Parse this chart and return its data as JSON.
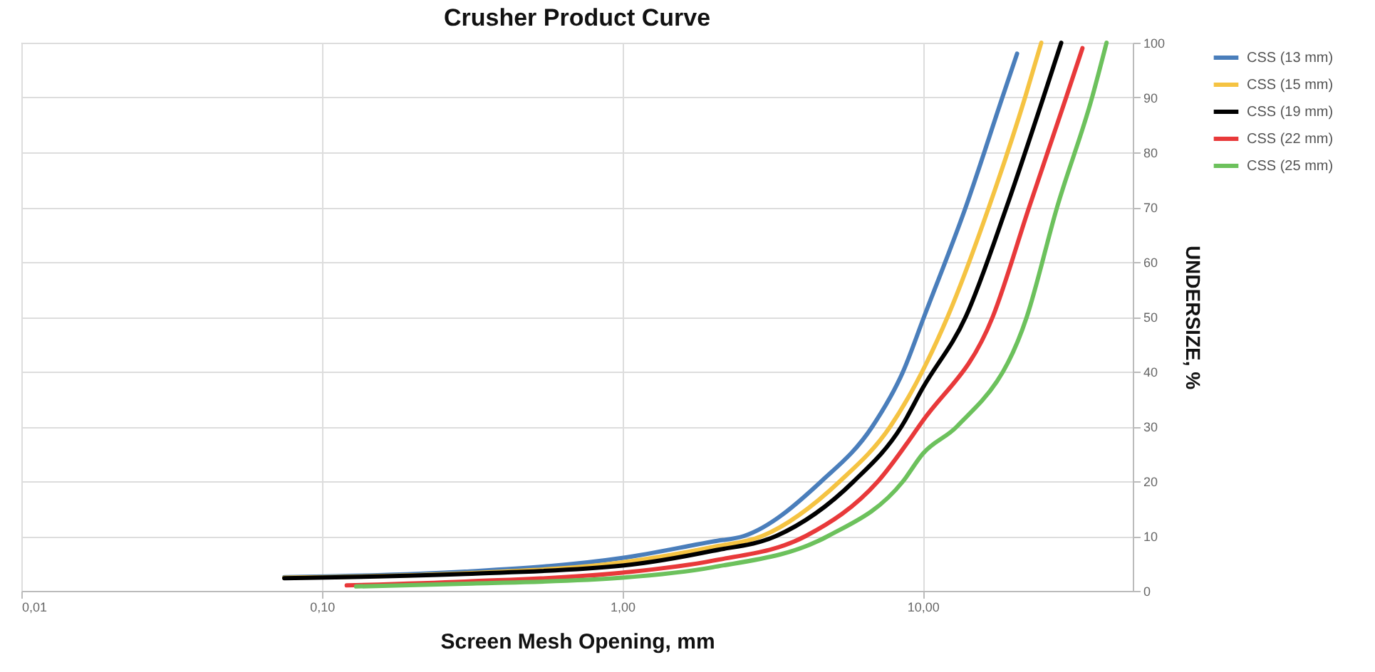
{
  "chart_data": {
    "type": "line",
    "title": "Crusher Product Curve",
    "xlabel": "Screen Mesh Opening, mm",
    "ylabel": "UNDERSIZE, %",
    "log": "x",
    "grid": true,
    "legend": "right",
    "line_style": "solid",
    "marker": "none",
    "xlim": [
      0.01,
      50
    ],
    "xticks": [
      {
        "value": 0.01,
        "label": "0,01"
      },
      {
        "value": 0.1,
        "label": "0,10"
      },
      {
        "value": 1,
        "label": "1,00"
      },
      {
        "value": 10,
        "label": "10,00"
      }
    ],
    "ylim": [
      0,
      100
    ],
    "yticks": [
      0,
      10,
      20,
      30,
      40,
      50,
      60,
      70,
      80,
      90,
      100
    ],
    "series": [
      {
        "name": "CSS (13 mm)",
        "color": "#4a7ebb",
        "x": [
          0.075,
          0.3,
          1,
          2,
          2.54,
          4.6,
          6.8,
          8.6,
          10.1,
          13.9,
          18.4,
          20.6
        ],
        "values": [
          2.5,
          3.5,
          6.0,
          9,
          10,
          20,
          30,
          40,
          50,
          70,
          90,
          98
        ]
      },
      {
        "name": "CSS (15 mm)",
        "color": "#f5c342",
        "x": [
          0.075,
          0.3,
          1,
          2,
          2.92,
          5.3,
          7.8,
          12.1,
          16.6,
          21.9,
          24.8
        ],
        "values": [
          2.4,
          3.2,
          5.2,
          8,
          10,
          20,
          30,
          50,
          70,
          90,
          100
        ]
      },
      {
        "name": "CSS (19 mm)",
        "color": "#000000",
        "x": [
          0.075,
          0.3,
          1,
          2,
          3.25,
          5.9,
          8.5,
          10,
          13.9,
          19,
          25.2,
          28.9
        ],
        "values": [
          2.3,
          3.1,
          4.6,
          7.3,
          10,
          20,
          30,
          37,
          50,
          70,
          90,
          100
        ]
      },
      {
        "name": "CSS (22 mm)",
        "color": "#e8393a",
        "x": [
          0.121,
          0.3,
          1,
          2,
          4.08,
          7.1,
          10,
          17.1,
          22.6,
          30,
          34
        ],
        "values": [
          1.0,
          1.7,
          3.3,
          5.5,
          10,
          20,
          31,
          50,
          70,
          90,
          99
        ]
      },
      {
        "name": "CSS (25 mm)",
        "color": "#6cc15c",
        "x": [
          0.13,
          0.3,
          1,
          2,
          4.84,
          8.6,
          10,
          13,
          22.2,
          28,
          36.6,
          40.9
        ],
        "values": [
          0.8,
          1.3,
          2.4,
          4.3,
          10,
          20,
          25,
          30,
          50,
          70,
          90,
          100
        ]
      }
    ]
  }
}
